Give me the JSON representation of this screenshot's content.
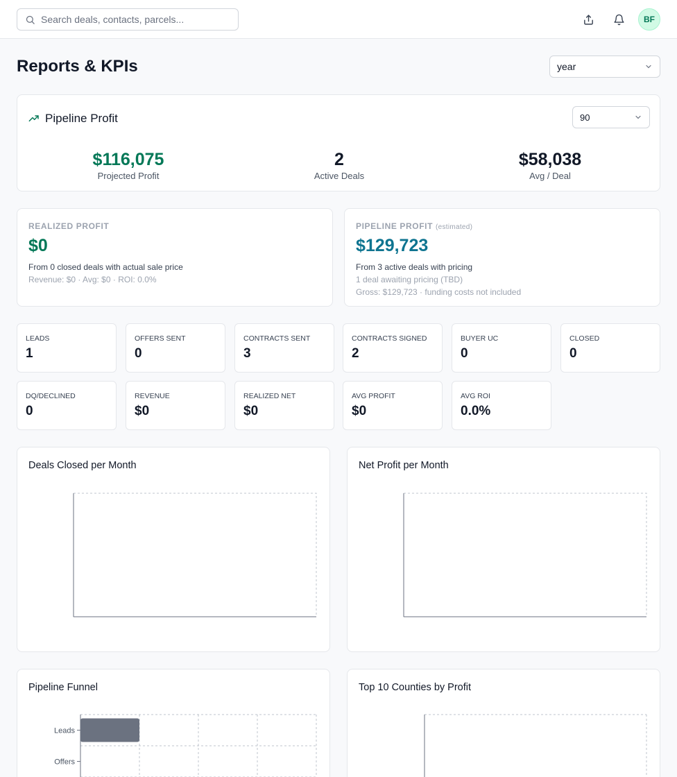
{
  "header": {
    "search_placeholder": "Search deals, contacts, parcels...",
    "avatar_initials": "BF",
    "icons": [
      "search-icon",
      "export-icon",
      "bell-icon"
    ]
  },
  "page": {
    "title": "Reports & KPIs",
    "period_select": "year"
  },
  "pipeline_profit": {
    "title": "Pipeline Profit",
    "days_select": "90",
    "metrics": [
      {
        "value": "$116,075",
        "label": "Projected Profit"
      },
      {
        "value": "2",
        "label": "Active Deals"
      },
      {
        "value": "$58,038",
        "label": "Avg / Deal"
      }
    ]
  },
  "realized": {
    "label": "REALIZED PROFIT",
    "value": "$0",
    "line1": "From 0 closed deals with actual sale price",
    "line2": "Revenue: $0 · Avg: $0 · ROI: 0.0%"
  },
  "estimated": {
    "label": "PIPELINE PROFIT",
    "label_note": "(estimated)",
    "value": "$129,723",
    "line1": "From 3 active deals with pricing",
    "line2": "1 deal awaiting pricing (TBD)",
    "line3": "Gross: $129,723 · funding costs not included"
  },
  "stats": [
    {
      "label": "LEADS",
      "value": "1"
    },
    {
      "label": "OFFERS SENT",
      "value": "0"
    },
    {
      "label": "CONTRACTS SENT",
      "value": "3"
    },
    {
      "label": "CONTRACTS SIGNED",
      "value": "2"
    },
    {
      "label": "BUYER UC",
      "value": "0"
    },
    {
      "label": "CLOSED",
      "value": "0"
    },
    {
      "label": "DQ/DECLINED",
      "value": "0"
    },
    {
      "label": "REVENUE",
      "value": "$0"
    },
    {
      "label": "REALIZED NET",
      "value": "$0"
    },
    {
      "label": "AVG PROFIT",
      "value": "$0"
    },
    {
      "label": "AVG ROI",
      "value": "0.0%"
    }
  ],
  "charts": {
    "deals_closed_title": "Deals Closed per Month",
    "net_profit_title": "Net Profit per Month",
    "funnel_title": "Pipeline Funnel",
    "counties_title": "Top 10 Counties by Profit"
  },
  "chart_data": [
    {
      "type": "bar",
      "title": "Deals Closed per Month",
      "categories": [],
      "values": []
    },
    {
      "type": "bar",
      "title": "Net Profit per Month",
      "categories": [],
      "values": []
    },
    {
      "type": "bar",
      "title": "Pipeline Funnel",
      "orientation": "horizontal",
      "categories": [
        "Leads",
        "Offers"
      ],
      "values": [
        1,
        0
      ],
      "xlim": [
        0,
        4
      ],
      "grid": true,
      "bar_color": "#6b7280"
    },
    {
      "type": "bar",
      "title": "Top 10 Counties by Profit",
      "orientation": "horizontal",
      "categories": [],
      "values": [],
      "grid": true
    }
  ],
  "colors": {
    "accent_green": "#047857",
    "accent_blue": "#0e7490",
    "bar_gray": "#6b7280"
  }
}
